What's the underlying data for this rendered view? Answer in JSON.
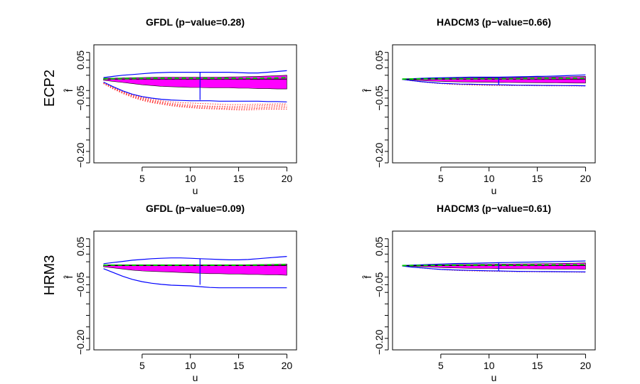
{
  "row_labels": [
    "ECP2",
    "HRM3"
  ],
  "chart_data": [
    {
      "type": "line",
      "title": "GFDL (p−value=0.28)",
      "xlabel": "u",
      "ylabel": "f̂",
      "xlim": [
        0,
        21
      ],
      "ylim": [
        -0.22,
        0.09
      ],
      "xticks": [
        5,
        10,
        15,
        20
      ],
      "yticks": [
        -0.2,
        -0.05,
        0.05
      ],
      "ytick_labels": [
        "−0.20",
        "−0.05",
        "0.05"
      ],
      "x": [
        1,
        2,
        3,
        4,
        5,
        6,
        7,
        8,
        9,
        10,
        11,
        12,
        13,
        14,
        15,
        16,
        17,
        18,
        19,
        20
      ],
      "band": {
        "upper": [
          0.002,
          0.0025,
          0.003,
          0.0035,
          0.004,
          0.0045,
          0.005,
          0.005,
          0.005,
          0.005,
          0.005,
          0.005,
          0.005,
          0.0055,
          0.006,
          0.0065,
          0.007,
          0.008,
          0.009,
          0.01
        ],
        "lower": [
          -0.003,
          -0.006,
          -0.009,
          -0.012,
          -0.015,
          -0.017,
          -0.019,
          -0.02,
          -0.021,
          -0.022,
          -0.022,
          -0.023,
          -0.023,
          -0.023,
          -0.024,
          -0.024,
          -0.025,
          -0.025,
          -0.026,
          -0.026
        ],
        "color": "#ff00ff"
      },
      "envelope": {
        "upper": [
          0.004,
          0.007,
          0.01,
          0.012,
          0.014,
          0.016,
          0.017,
          0.018,
          0.018,
          0.018,
          0.018,
          0.018,
          0.018,
          0.018,
          0.017,
          0.016,
          0.016,
          0.018,
          0.02,
          0.022
        ],
        "lower": [
          -0.008,
          -0.02,
          -0.031,
          -0.04,
          -0.046,
          -0.05,
          -0.053,
          -0.055,
          -0.056,
          -0.057,
          -0.057,
          -0.057,
          -0.058,
          -0.058,
          -0.058,
          -0.058,
          -0.058,
          -0.059,
          -0.059,
          -0.06
        ]
      },
      "center": [
        0,
        0,
        0,
        0,
        0,
        0,
        0,
        0,
        0,
        0,
        0,
        0,
        0,
        0,
        0,
        0,
        0,
        0,
        0,
        0
      ],
      "mean_dashed": [
        0.001,
        0.001,
        0.0012,
        0.0015,
        0.0018,
        0.002,
        0.002,
        0.002,
        0.002,
        0.002,
        0.002,
        0.002,
        0.002,
        0.002,
        0.002,
        0.002,
        0.0022,
        0.0025,
        0.003,
        0.004
      ],
      "vline": {
        "x": 11,
        "from": -0.055,
        "to": 0.018
      },
      "dotted_series": [
        [
          -0.01,
          -0.022,
          -0.032,
          -0.041,
          -0.048,
          -0.053,
          -0.057,
          -0.06,
          -0.062,
          -0.063,
          -0.064,
          -0.065,
          -0.066,
          -0.067,
          -0.067,
          -0.067,
          -0.066,
          -0.066,
          -0.065,
          -0.065
        ],
        [
          -0.01,
          -0.023,
          -0.034,
          -0.043,
          -0.05,
          -0.056,
          -0.06,
          -0.064,
          -0.066,
          -0.068,
          -0.07,
          -0.071,
          -0.071,
          -0.072,
          -0.072,
          -0.071,
          -0.07,
          -0.069,
          -0.069,
          -0.068
        ],
        [
          -0.011,
          -0.024,
          -0.035,
          -0.045,
          -0.052,
          -0.058,
          -0.062,
          -0.066,
          -0.069,
          -0.071,
          -0.072,
          -0.073,
          -0.074,
          -0.075,
          -0.075,
          -0.075,
          -0.074,
          -0.073,
          -0.072,
          -0.072
        ],
        [
          -0.011,
          -0.025,
          -0.036,
          -0.046,
          -0.054,
          -0.06,
          -0.064,
          -0.068,
          -0.071,
          -0.073,
          -0.075,
          -0.076,
          -0.077,
          -0.078,
          -0.078,
          -0.078,
          -0.077,
          -0.076,
          -0.076,
          -0.075
        ],
        [
          -0.012,
          -0.026,
          -0.038,
          -0.048,
          -0.056,
          -0.062,
          -0.066,
          -0.07,
          -0.073,
          -0.075,
          -0.077,
          -0.078,
          -0.079,
          -0.08,
          -0.081,
          -0.081,
          -0.08,
          -0.079,
          -0.079,
          -0.079
        ]
      ]
    },
    {
      "type": "line",
      "title": "HADCM3 (p−value=0.66)",
      "xlabel": "u",
      "ylabel": "f̂",
      "xlim": [
        0,
        21
      ],
      "ylim": [
        -0.22,
        0.09
      ],
      "xticks": [
        5,
        10,
        15,
        20
      ],
      "yticks": [
        -0.2,
        -0.05,
        0.05
      ],
      "ytick_labels": [
        "−0.20",
        "−0.05",
        "0.05"
      ],
      "x": [
        1,
        2,
        3,
        4,
        5,
        6,
        7,
        8,
        9,
        10,
        11,
        12,
        13,
        14,
        15,
        16,
        17,
        18,
        19,
        20
      ],
      "band": {
        "upper": [
          0,
          0.0005,
          0.001,
          0.0015,
          0.002,
          0.0025,
          0.003,
          0.0032,
          0.0034,
          0.0036,
          0.0038,
          0.004,
          0.0042,
          0.0045,
          0.0048,
          0.005,
          0.0055,
          0.006,
          0.0065,
          0.007
        ],
        "lower": [
          0,
          -0.002,
          -0.004,
          -0.005,
          -0.006,
          -0.007,
          -0.0075,
          -0.008,
          -0.0082,
          -0.0085,
          -0.0088,
          -0.009,
          -0.0092,
          -0.0094,
          -0.0096,
          -0.0098,
          -0.01,
          -0.0102,
          -0.0104,
          -0.0105
        ],
        "color": "#ff00ff"
      },
      "envelope": {
        "upper": [
          0,
          0.001,
          0.002,
          0.003,
          0.0035,
          0.004,
          0.0045,
          0.005,
          0.005,
          0.005,
          0.005,
          0.0055,
          0.006,
          0.0065,
          0.007,
          0.0075,
          0.008,
          0.009,
          0.01,
          0.011
        ],
        "lower": [
          -0.001,
          -0.004,
          -0.007,
          -0.009,
          -0.011,
          -0.012,
          -0.013,
          -0.0135,
          -0.014,
          -0.0145,
          -0.015,
          -0.0155,
          -0.016,
          -0.0162,
          -0.0164,
          -0.0166,
          -0.0168,
          -0.017,
          -0.0172,
          -0.0175
        ]
      },
      "center": [
        0,
        0,
        0,
        0,
        0,
        0,
        0,
        0,
        0,
        0,
        0,
        0,
        0,
        0,
        0,
        0,
        0,
        0,
        0,
        0
      ],
      "mean_dashed": [
        0,
        0.0003,
        0.0006,
        0.0008,
        0.001,
        0.001,
        0.001,
        0.001,
        0.001,
        0.001,
        0.001,
        0.001,
        0.0012,
        0.0014,
        0.0016,
        0.0018,
        0.002,
        0.0022,
        0.0024,
        0.0026
      ],
      "vline": {
        "x": 11,
        "from": -0.015,
        "to": 0.005
      },
      "dotted_series": [
        [
          -0.001,
          -0.004,
          -0.007,
          -0.0095,
          -0.0115,
          -0.013,
          -0.014,
          -0.0148,
          -0.0154,
          -0.0158,
          -0.016,
          -0.0162,
          -0.0164,
          -0.0166,
          -0.0168,
          -0.017,
          -0.017,
          -0.0172,
          -0.0172,
          -0.0174
        ],
        [
          -0.001,
          -0.0045,
          -0.0075,
          -0.01,
          -0.012,
          -0.0136,
          -0.0148,
          -0.0156,
          -0.0162,
          -0.0166,
          -0.0168,
          -0.017,
          -0.0172,
          -0.0174,
          -0.0176,
          -0.0178,
          -0.018,
          -0.018,
          -0.0182,
          -0.0184
        ]
      ]
    },
    {
      "type": "line",
      "title": "GFDL (p−value=0.09)",
      "xlabel": "u",
      "ylabel": "f̂",
      "xlim": [
        0,
        21
      ],
      "ylim": [
        -0.22,
        0.09
      ],
      "xticks": [
        5,
        10,
        15,
        20
      ],
      "yticks": [
        -0.2,
        -0.05,
        0.05
      ],
      "ytick_labels": [
        "−0.20",
        "−0.05",
        "0.05"
      ],
      "x": [
        1,
        2,
        3,
        4,
        5,
        6,
        7,
        8,
        9,
        10,
        11,
        12,
        13,
        14,
        15,
        16,
        17,
        18,
        19,
        20
      ],
      "band": {
        "upper": [
          0.002,
          0.002,
          0.002,
          0.002,
          0.002,
          0.002,
          0.002,
          0.002,
          0.002,
          0.002,
          0.002,
          0.002,
          0.002,
          0.002,
          0.002,
          0.0022,
          0.0025,
          0.003,
          0.0035,
          0.004
        ],
        "lower": [
          -0.003,
          -0.006,
          -0.009,
          -0.012,
          -0.014,
          -0.015,
          -0.016,
          -0.017,
          -0.018,
          -0.019,
          -0.02,
          -0.021,
          -0.021,
          -0.022,
          -0.022,
          -0.023,
          -0.023,
          -0.024,
          -0.024,
          -0.025
        ],
        "color": "#ff00ff"
      },
      "envelope": {
        "upper": [
          0.005,
          0.008,
          0.011,
          0.014,
          0.016,
          0.018,
          0.019,
          0.02,
          0.02,
          0.019,
          0.018,
          0.017,
          0.016,
          0.015,
          0.015,
          0.016,
          0.018,
          0.02,
          0.022,
          0.024
        ],
        "lower": [
          -0.008,
          -0.018,
          -0.028,
          -0.036,
          -0.042,
          -0.046,
          -0.049,
          -0.051,
          -0.052,
          -0.053,
          -0.055,
          -0.057,
          -0.058,
          -0.058,
          -0.058,
          -0.058,
          -0.058,
          -0.058,
          -0.058,
          -0.058
        ]
      },
      "center": [
        0,
        0,
        0,
        0,
        0,
        0,
        0,
        0,
        0,
        0,
        0,
        0,
        0,
        0,
        0,
        0,
        0,
        0,
        0,
        0
      ],
      "mean_dashed": [
        0.001,
        0.001,
        0.001,
        0.001,
        0.001,
        0.001,
        0.001,
        0.001,
        0.001,
        0.001,
        0.001,
        0.001,
        0.001,
        0.001,
        0.001,
        0.0012,
        0.0015,
        0.002,
        0.0025,
        0.003
      ],
      "vline": {
        "x": 11,
        "from": -0.05,
        "to": 0.018
      },
      "dotted_series": []
    },
    {
      "type": "line",
      "title": "HADCM3 (p−value=0.61)",
      "xlabel": "u",
      "ylabel": "f̂",
      "xlim": [
        0,
        21
      ],
      "ylim": [
        -0.22,
        0.09
      ],
      "xticks": [
        5,
        10,
        15,
        20
      ],
      "yticks": [
        -0.2,
        -0.05,
        0.05
      ],
      "ytick_labels": [
        "−0.20",
        "−0.05",
        "0.05"
      ],
      "x": [
        1,
        2,
        3,
        4,
        5,
        6,
        7,
        8,
        9,
        10,
        11,
        12,
        13,
        14,
        15,
        16,
        17,
        18,
        19,
        20
      ],
      "band": {
        "upper": [
          0,
          0.0005,
          0.001,
          0.0015,
          0.002,
          0.0025,
          0.003,
          0.0032,
          0.0034,
          0.0036,
          0.0038,
          0.004,
          0.0042,
          0.0045,
          0.0048,
          0.005,
          0.0055,
          0.006,
          0.0065,
          0.007
        ],
        "lower": [
          0,
          -0.002,
          -0.003,
          -0.004,
          -0.005,
          -0.006,
          -0.0065,
          -0.007,
          -0.0072,
          -0.0075,
          -0.0078,
          -0.008,
          -0.0082,
          -0.0084,
          -0.0086,
          -0.0088,
          -0.009,
          -0.0092,
          -0.0094,
          -0.0095
        ],
        "color": "#ff00ff"
      },
      "envelope": {
        "upper": [
          0,
          0.001,
          0.002,
          0.003,
          0.004,
          0.005,
          0.0055,
          0.006,
          0.0065,
          0.007,
          0.0075,
          0.008,
          0.0085,
          0.009,
          0.0095,
          0.01,
          0.0105,
          0.011,
          0.0115,
          0.012
        ],
        "lower": [
          -0.001,
          -0.004,
          -0.006,
          -0.008,
          -0.01,
          -0.011,
          -0.012,
          -0.0125,
          -0.013,
          -0.0135,
          -0.014,
          -0.0145,
          -0.015,
          -0.0152,
          -0.0154,
          -0.0156,
          -0.0158,
          -0.016,
          -0.0162,
          -0.0165
        ]
      },
      "center": [
        0,
        0,
        0,
        0,
        0,
        0,
        0,
        0,
        0,
        0,
        0,
        0,
        0,
        0,
        0,
        0,
        0,
        0,
        0,
        0
      ],
      "mean_dashed": [
        0,
        0.0003,
        0.0006,
        0.0008,
        0.001,
        0.001,
        0.001,
        0.001,
        0.001,
        0.001,
        0.001,
        0.001,
        0.0012,
        0.0014,
        0.0016,
        0.0018,
        0.002,
        0.0022,
        0.0024,
        0.0026
      ],
      "vline": {
        "x": 11,
        "from": -0.013,
        "to": 0.007
      },
      "dotted_series": [
        [
          -0.001,
          -0.004,
          -0.0065,
          -0.0085,
          -0.0105,
          -0.012,
          -0.013,
          -0.0138,
          -0.0144,
          -0.0148,
          -0.0152,
          -0.0156,
          -0.016,
          -0.0162,
          -0.0164,
          -0.0166,
          -0.0168,
          -0.017,
          -0.0172,
          -0.0174
        ]
      ]
    }
  ],
  "colors": {
    "band": "#ff00ff",
    "envelope": "#0000ff",
    "center": "#000000",
    "mean_dashed": "#00cc00",
    "dotted": "#ff3333"
  }
}
